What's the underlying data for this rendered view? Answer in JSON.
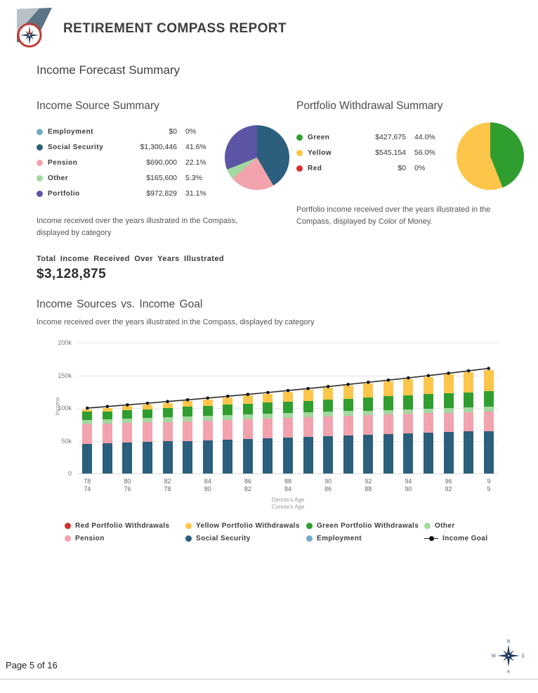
{
  "header": {
    "title": "RETIREMENT COMPASS REPORT"
  },
  "sections": {
    "income_forecast_title": "Income Forecast Summary"
  },
  "income_source_summary": {
    "title": "Income Source Summary",
    "rows": [
      {
        "label": "Employment",
        "value": "$0",
        "pct": "0%"
      },
      {
        "label": "Social Security",
        "value": "$1,300,446",
        "pct": "41.6%"
      },
      {
        "label": "Pension",
        "value": "$690,000",
        "pct": "22.1%"
      },
      {
        "label": "Other",
        "value": "$165,600",
        "pct": "5.3%"
      },
      {
        "label": "Portfolio",
        "value": "$972,829",
        "pct": "31.1%"
      }
    ],
    "caption": "Income received over the years illustrated in the Compass, displayed by category",
    "total_label": "Total Income Received Over Years Illustrated",
    "total_value": "$3,128,875"
  },
  "portfolio_withdrawal_summary": {
    "title": "Portfolio Withdrawal Summary",
    "rows": [
      {
        "label": "Green",
        "value": "$427,675",
        "pct": "44.0%"
      },
      {
        "label": "Yellow",
        "value": "$545,154",
        "pct": "56.0%"
      },
      {
        "label": "Red",
        "value": "$0",
        "pct": "0%"
      }
    ],
    "caption": "Portfolio income received over the years illustrated in the Compass, displayed by Color of Money."
  },
  "bar_section": {
    "title": "Income Sources vs. Income Goal",
    "subtitle": "Income received over the years illustrated in the Compass, displayed by category"
  },
  "footer": {
    "page_label": "Page 5 of 16"
  },
  "chart_data": [
    {
      "id": "income_source_pie",
      "type": "pie",
      "title": "Income Source Summary",
      "labels": [
        "Employment",
        "Social Security",
        "Pension",
        "Other",
        "Portfolio"
      ],
      "values": [
        0,
        1300446,
        690000,
        165600,
        972829
      ],
      "percents": [
        0,
        41.6,
        22.1,
        5.3,
        31.1
      ],
      "colors": [
        "#72abc9",
        "#2b5f7d",
        "#f2a3ad",
        "#a3d8a0",
        "#5d55a6"
      ]
    },
    {
      "id": "portfolio_withdrawal_pie",
      "type": "pie",
      "title": "Portfolio Withdrawal Summary",
      "labels": [
        "Green",
        "Yellow",
        "Red"
      ],
      "values": [
        427675,
        545154,
        0
      ],
      "percents": [
        44.0,
        56.0,
        0
      ],
      "colors": [
        "#2f9e2f",
        "#fdc64b",
        "#d2322e"
      ]
    },
    {
      "id": "income_vs_goal",
      "type": "bar",
      "stacked": true,
      "title": "Income Sources vs. Income Goal",
      "subtitle": "Income received over the years illustrated in the Compass, displayed by category",
      "ylabel": "Income",
      "ylim": [
        0,
        200000
      ],
      "yticks": [
        "0",
        "50k",
        "100k",
        "150k",
        "200k"
      ],
      "x_axis": {
        "primary_label": "Dennis's Age",
        "secondary_label": "Connie's Age",
        "tick_every": 2,
        "tick_labels_primary": [
          "78",
          "80",
          "82",
          "84",
          "86",
          "88",
          "90",
          "92",
          "94",
          "96",
          "9"
        ],
        "tick_labels_secondary": [
          "74",
          "76",
          "78",
          "80",
          "82",
          "84",
          "86",
          "88",
          "90",
          "92",
          "9"
        ]
      },
      "series": [
        {
          "name": "Employment",
          "color": "#72abc9",
          "values": [
            0,
            0,
            0,
            0,
            0,
            0,
            0,
            0,
            0,
            0,
            0,
            0,
            0,
            0,
            0,
            0,
            0,
            0,
            0,
            0,
            0
          ]
        },
        {
          "name": "Social Security",
          "color": "#2b5f7d",
          "values": [
            45000,
            46000,
            47000,
            48000,
            49000,
            50000,
            51000,
            52000,
            53000,
            54000,
            55000,
            56000,
            57000,
            58000,
            59000,
            60000,
            61000,
            62000,
            63000,
            64000,
            65000
          ]
        },
        {
          "name": "Pension",
          "color": "#f2a3ad",
          "values": [
            30000,
            30000,
            30000,
            30000,
            30000,
            30000,
            30000,
            30000,
            30000,
            30000,
            30000,
            30000,
            30000,
            30000,
            30000,
            30000,
            30000,
            30000,
            30000,
            30000,
            30000
          ]
        },
        {
          "name": "Other",
          "color": "#a3d8a0",
          "values": [
            7200,
            7200,
            7200,
            7200,
            7200,
            7200,
            7200,
            7200,
            7200,
            7200,
            7200,
            7200,
            7200,
            7200,
            7200,
            7200,
            7200,
            7200,
            7200,
            7200,
            7200
          ]
        },
        {
          "name": "Green Portfolio Withdrawals",
          "color": "#2f9e2f",
          "values": [
            12000,
            12000,
            13000,
            13000,
            14000,
            15000,
            15000,
            16000,
            16000,
            17000,
            18000,
            18000,
            19000,
            19000,
            20000,
            21000,
            21000,
            22000,
            22000,
            23000,
            24000
          ]
        },
        {
          "name": "Yellow Portfolio Withdrawals",
          "color": "#fdc64b",
          "values": [
            3800,
            5200,
            5700,
            7200,
            7800,
            8400,
            10100,
            10900,
            12700,
            13600,
            14600,
            16600,
            17700,
            19900,
            21200,
            22500,
            24900,
            26400,
            29000,
            30700,
            32400
          ]
        },
        {
          "name": "Red Portfolio Withdrawals",
          "color": "#d2322e",
          "values": [
            0,
            0,
            0,
            0,
            0,
            0,
            0,
            0,
            0,
            0,
            0,
            0,
            0,
            0,
            0,
            0,
            0,
            0,
            0,
            0,
            0
          ]
        }
      ],
      "line_series": {
        "name": "Income Goal",
        "color": "#2b2b2b",
        "values": [
          100000,
          102400,
          104900,
          107400,
          110000,
          112600,
          115300,
          118100,
          120900,
          123800,
          126800,
          129800,
          132900,
          136100,
          139400,
          142700,
          146100,
          149600,
          153200,
          156900,
          160600
        ]
      },
      "legend": [
        {
          "label": "Red Portfolio Withdrawals",
          "color": "#d2322e",
          "type": "dot"
        },
        {
          "label": "Yellow Portfolio Withdrawals",
          "color": "#fdc64b",
          "type": "dot"
        },
        {
          "label": "Green Portfolio Withdrawals",
          "color": "#2f9e2f",
          "type": "dot"
        },
        {
          "label": "Other",
          "color": "#a3d8a0",
          "type": "dot"
        },
        {
          "label": "Pension",
          "color": "#f2a3ad",
          "type": "dot"
        },
        {
          "label": "Social Security",
          "color": "#2b5f7d",
          "type": "dot"
        },
        {
          "label": "Employment",
          "color": "#72abc9",
          "type": "dot"
        },
        {
          "label": "Income Goal",
          "color": "#222222",
          "type": "line-dot"
        }
      ]
    }
  ]
}
